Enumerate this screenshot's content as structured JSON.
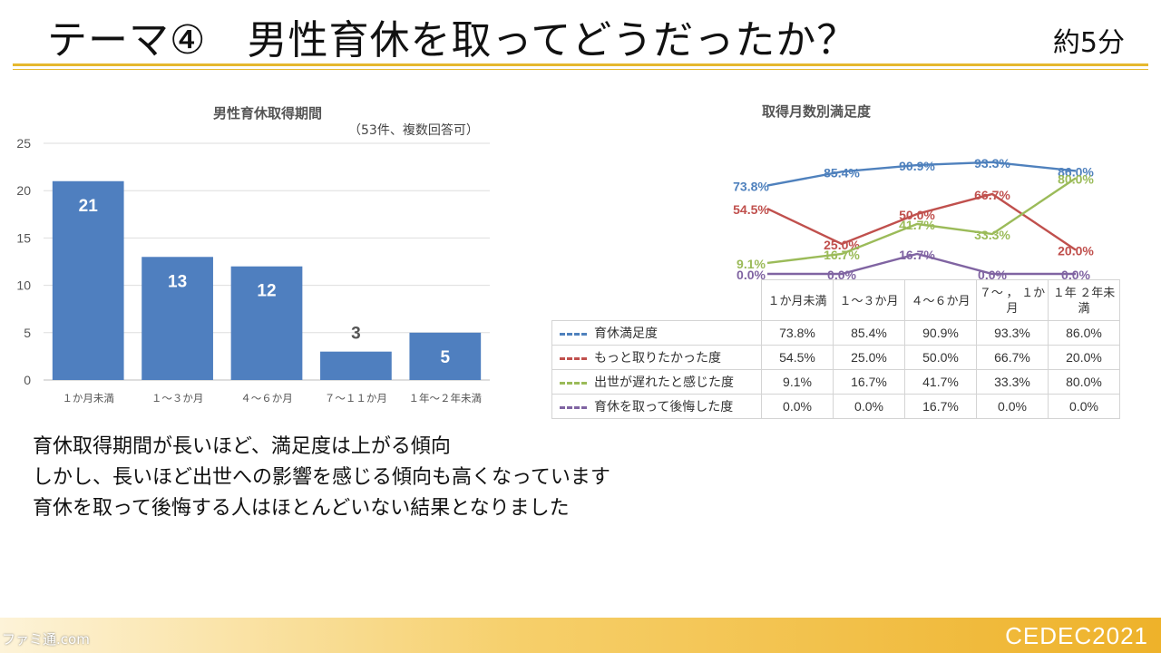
{
  "slide": {
    "title": "テーマ④　男性育休を取ってどうだったか？",
    "time": "約5分"
  },
  "bar_chart": {
    "title": "男性育休取得期間",
    "note": "（53件、複数回答可）"
  },
  "line_chart": {
    "title": "取得月数別満足度",
    "table_headers": [
      "１か月未満",
      "１～３か月",
      "４～６か月",
      "７～ ， １か月",
      "１年 ２年未満"
    ]
  },
  "bullets": [
    "育休取得期間が長いほど、満足度は上がる傾向",
    "しかし、長いほど出世への影響を感じる傾向も高くなっています",
    "育休を取って後悔する人はほとんどいない結果となりました"
  ],
  "footer": {
    "logo": "CEDEC2021",
    "watermark": "ファミ通.com"
  },
  "chart_data": [
    {
      "type": "bar",
      "title": "男性育休取得期間",
      "categories": [
        "１か月未満",
        "１～３か月",
        "４～６か月",
        "７～１１か月",
        "１年～２年未満"
      ],
      "values": [
        21,
        13,
        12,
        3,
        5
      ],
      "ylim": [
        0,
        25
      ],
      "yticks": [
        0,
        5,
        10,
        15,
        20,
        25
      ],
      "grid": true,
      "bar_color": "#4f7fbf"
    },
    {
      "type": "line",
      "title": "取得月数別満足度",
      "categories": [
        "１か月未満",
        "１～３か月",
        "４～６か月",
        "７～ ， １か月",
        "１年 ２年未満"
      ],
      "series": [
        {
          "name": "育休満足度",
          "color": "#4f81bd",
          "values": [
            73.8,
            85.4,
            90.9,
            93.3,
            86.0
          ],
          "labels": [
            "73.8%",
            "85.4%",
            "90.9%",
            "93.3%",
            "86.0%"
          ]
        },
        {
          "name": "もっと取りたかった度",
          "color": "#c0504d",
          "values": [
            54.5,
            25.0,
            50.0,
            66.7,
            20.0
          ],
          "labels": [
            "54.5%",
            "25.0%",
            "50.0%",
            "66.7%",
            "20.0%"
          ]
        },
        {
          "name": "出世が遅れたと感じた度",
          "color": "#9bbb59",
          "values": [
            9.1,
            16.7,
            41.7,
            33.3,
            80.0
          ],
          "labels": [
            "9.1%",
            "16.7%",
            "41.7%",
            "33.3%",
            "80.0%"
          ]
        },
        {
          "name": "育休を取って後悔した度",
          "color": "#8064a2",
          "values": [
            0.0,
            0.0,
            16.7,
            0.0,
            0.0
          ],
          "labels": [
            "0.0%",
            "0.0%",
            "16.7%",
            "0.0%",
            "0.0%"
          ]
        }
      ],
      "legend": "table-left"
    }
  ]
}
